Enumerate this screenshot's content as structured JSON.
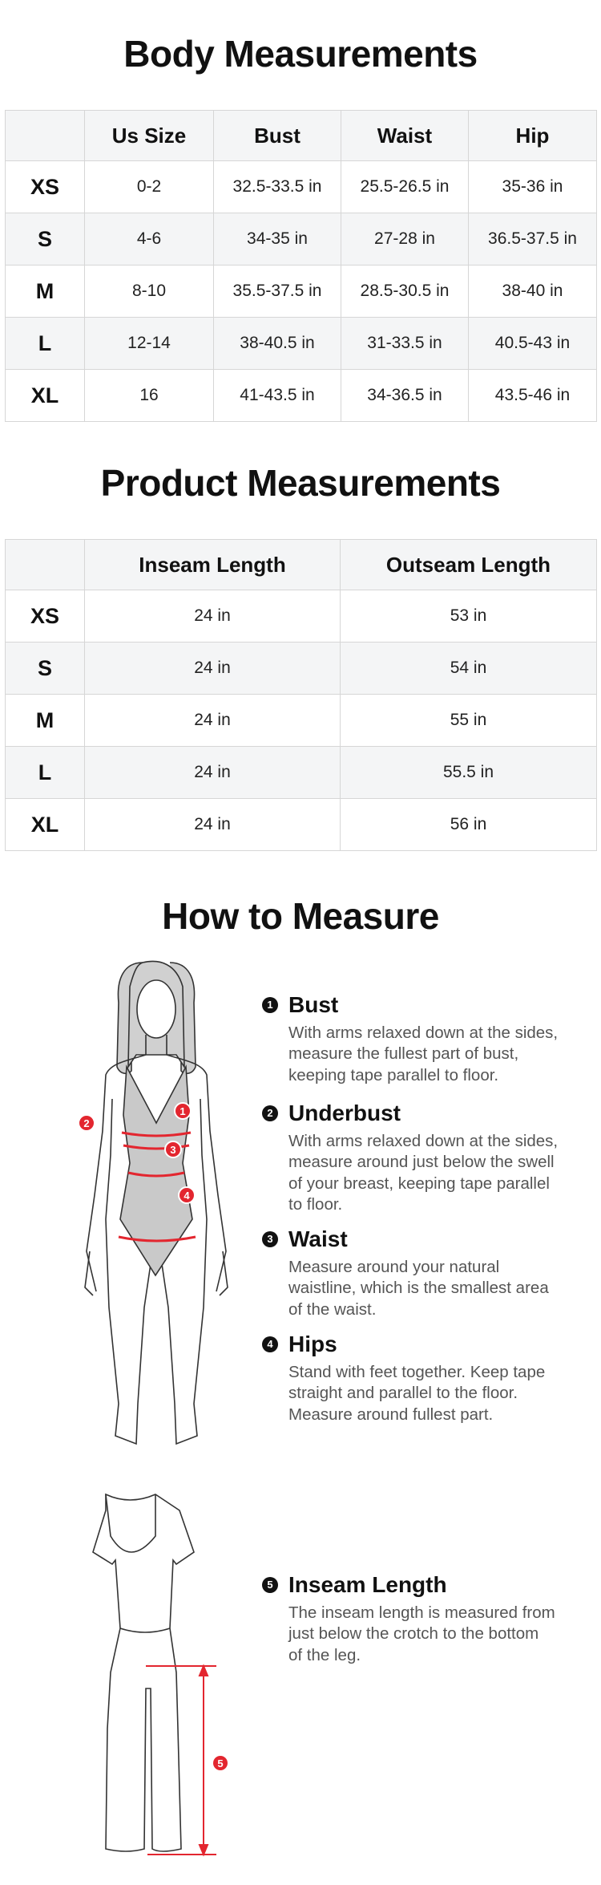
{
  "body_measurements": {
    "title": "Body Measurements",
    "headers": [
      "",
      "Us Size",
      "Bust",
      "Waist",
      "Hip"
    ],
    "rows": [
      [
        "XS",
        "0-2",
        "32.5-33.5 in",
        "25.5-26.5 in",
        "35-36 in"
      ],
      [
        "S",
        "4-6",
        "34-35 in",
        "27-28 in",
        "36.5-37.5 in"
      ],
      [
        "M",
        "8-10",
        "35.5-37.5 in",
        "28.5-30.5 in",
        "38-40 in"
      ],
      [
        "L",
        "12-14",
        "38-40.5 in",
        "31-33.5 in",
        "40.5-43 in"
      ],
      [
        "XL",
        "16",
        "41-43.5 in",
        "34-36.5 in",
        "43.5-46 in"
      ]
    ]
  },
  "product_measurements": {
    "title": "Product Measurements",
    "headers": [
      "",
      "Inseam Length",
      "Outseam Length"
    ],
    "rows": [
      [
        "XS",
        "24 in",
        "53 in"
      ],
      [
        "S",
        "24 in",
        "54 in"
      ],
      [
        "M",
        "24 in",
        "55 in"
      ],
      [
        "L",
        "24 in",
        "55.5 in"
      ],
      [
        "XL",
        "24 in",
        "56 in"
      ]
    ]
  },
  "how_to_measure": {
    "title": "How to Measure",
    "items": [
      {
        "num": "1",
        "title": "Bust",
        "lines": [
          "With arms relaxed down at the sides,",
          "measure the fullest part of bust,",
          "keeping tape parallel to floor."
        ]
      },
      {
        "num": "2",
        "title": "Underbust",
        "lines": [
          "With arms relaxed down at the sides,",
          "measure around just below the swell",
          "of your breast, keeping tape parallel",
          "to floor."
        ]
      },
      {
        "num": "3",
        "title": "Waist",
        "lines": [
          "Measure around your natural",
          "waistline, which is the smallest area",
          "of the waist."
        ]
      },
      {
        "num": "4",
        "title": "Hips",
        "lines": [
          "Stand with feet together. Keep tape",
          "straight and parallel to the floor.",
          "Measure around fullest part."
        ]
      },
      {
        "num": "5",
        "title": "Inseam Length",
        "lines": [
          "The inseam length is measured from",
          "just below the crotch to the bottom",
          "of the leg."
        ]
      }
    ],
    "figure_markers": [
      "1",
      "2",
      "3",
      "4",
      "5"
    ]
  },
  "colors": {
    "accent_red": "#e3262f",
    "header_bg": "#f4f5f6",
    "border": "#d6d6d6",
    "bodysuit_gray": "#c9c9c9"
  }
}
